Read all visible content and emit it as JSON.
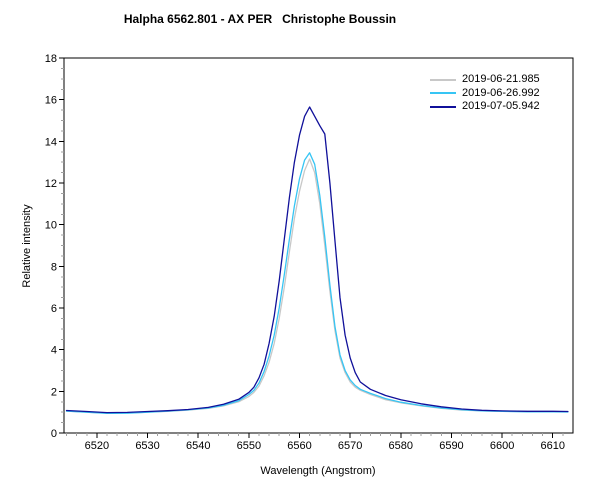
{
  "chart_data": {
    "type": "line",
    "title": "Halpha 6562.801 - AX PER   Christophe Boussin",
    "xlabel": "Wavelength (Angstrom)",
    "ylabel": "Relative intensity",
    "xlim": [
      6513.5,
      6614
    ],
    "ylim": [
      0,
      18
    ],
    "xticks": [
      6520,
      6530,
      6540,
      6550,
      6560,
      6570,
      6580,
      6590,
      6600,
      6610
    ],
    "yticks": [
      0,
      2,
      4,
      6,
      8,
      10,
      12,
      14,
      16,
      18
    ],
    "x_minor_step": 2,
    "y_minor_step": 0.5,
    "grid": false,
    "legend_position": "top-right-inside",
    "x": [
      6514,
      6518,
      6522,
      6526,
      6530,
      6534,
      6538,
      6542,
      6545,
      6548,
      6550,
      6551,
      6552,
      6553,
      6554,
      6555,
      6556,
      6557,
      6558,
      6559,
      6560,
      6561,
      6562,
      6563,
      6564,
      6565,
      6566,
      6567,
      6568,
      6569,
      6570,
      6571,
      6572,
      6574,
      6577,
      6580,
      6584,
      6588,
      6592,
      6596,
      6600,
      6605,
      6610,
      6613
    ],
    "series": [
      {
        "name": "2019-06-21.985",
        "color": "#c8c8c8",
        "values": [
          1.05,
          1.0,
          0.95,
          0.96,
          1.0,
          1.04,
          1.1,
          1.18,
          1.3,
          1.5,
          1.75,
          1.95,
          2.25,
          2.75,
          3.4,
          4.3,
          5.5,
          7.0,
          8.7,
          10.3,
          11.6,
          12.6,
          13.15,
          12.5,
          11.0,
          9.0,
          6.8,
          4.9,
          3.6,
          2.9,
          2.45,
          2.2,
          2.05,
          1.85,
          1.6,
          1.45,
          1.3,
          1.18,
          1.1,
          1.06,
          1.04,
          1.03,
          1.03,
          1.02
        ]
      },
      {
        "name": "2019-06-26.992",
        "color": "#36c5f4",
        "values": [
          1.05,
          1.0,
          0.94,
          0.95,
          1.0,
          1.05,
          1.11,
          1.2,
          1.33,
          1.55,
          1.85,
          2.05,
          2.4,
          2.95,
          3.7,
          4.7,
          6.0,
          7.6,
          9.3,
          10.9,
          12.2,
          13.1,
          13.45,
          12.9,
          11.4,
          9.4,
          7.1,
          5.1,
          3.75,
          3.0,
          2.55,
          2.28,
          2.1,
          1.9,
          1.65,
          1.48,
          1.32,
          1.2,
          1.12,
          1.06,
          1.04,
          1.02,
          1.02,
          1.01
        ]
      },
      {
        "name": "2019-07-05.942",
        "color": "#10109a",
        "values": [
          1.08,
          1.03,
          0.98,
          0.99,
          1.03,
          1.07,
          1.13,
          1.23,
          1.38,
          1.62,
          1.95,
          2.2,
          2.65,
          3.3,
          4.3,
          5.6,
          7.3,
          9.3,
          11.3,
          13.0,
          14.3,
          15.2,
          15.65,
          15.2,
          14.75,
          14.35,
          12.0,
          9.2,
          6.5,
          4.7,
          3.6,
          2.9,
          2.45,
          2.1,
          1.8,
          1.6,
          1.4,
          1.26,
          1.15,
          1.09,
          1.06,
          1.04,
          1.04,
          1.03
        ]
      }
    ],
    "colors": {
      "frame": "#000000",
      "major_tick": "#000000",
      "minor_tick": "#a0a0a0",
      "text": "#000000",
      "background": "#ffffff"
    }
  }
}
